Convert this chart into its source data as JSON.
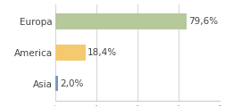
{
  "categories": [
    "Europa",
    "America",
    "Asia"
  ],
  "values": [
    79.6,
    18.4,
    2.0
  ],
  "labels": [
    "79,6%",
    "18,4%",
    "2,0%"
  ],
  "bar_colors": [
    "#b5c99a",
    "#f5c96e",
    "#7a9abf"
  ],
  "xlim": [
    0,
    100
  ],
  "figsize": [
    2.8,
    1.2
  ],
  "dpi": 100,
  "background_color": "#ffffff",
  "label_fontsize": 7.5,
  "tick_fontsize": 7.5
}
